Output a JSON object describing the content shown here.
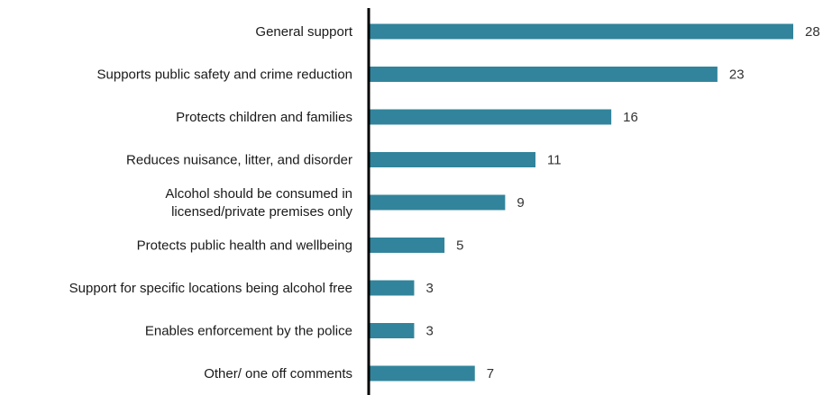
{
  "chart_data": {
    "type": "bar",
    "orientation": "horizontal",
    "categories": [
      [
        "General support"
      ],
      [
        "Supports public safety and crime reduction"
      ],
      [
        "Protects children and families"
      ],
      [
        "Reduces nuisance, litter, and disorder"
      ],
      [
        "Alcohol should be consumed in",
        "licensed/private premises only"
      ],
      [
        "Protects public health and wellbeing"
      ],
      [
        "Support for specific locations being alcohol free"
      ],
      [
        "Enables enforcement by the police"
      ],
      [
        "Other/ one off comments"
      ]
    ],
    "values": [
      28,
      23,
      16,
      11,
      9,
      5,
      3,
      3,
      7
    ],
    "data_labels": [
      "28",
      "23",
      "16",
      "11",
      "9",
      "5",
      "3",
      "3",
      "7"
    ],
    "xlim": [
      0,
      28
    ],
    "grid": false,
    "legend": "none",
    "title": "",
    "xlabel": "",
    "ylabel": "",
    "colors": {
      "bar": "#31849b",
      "axis": "#000000",
      "label": "#1a1a1a",
      "value": "#333333"
    }
  }
}
